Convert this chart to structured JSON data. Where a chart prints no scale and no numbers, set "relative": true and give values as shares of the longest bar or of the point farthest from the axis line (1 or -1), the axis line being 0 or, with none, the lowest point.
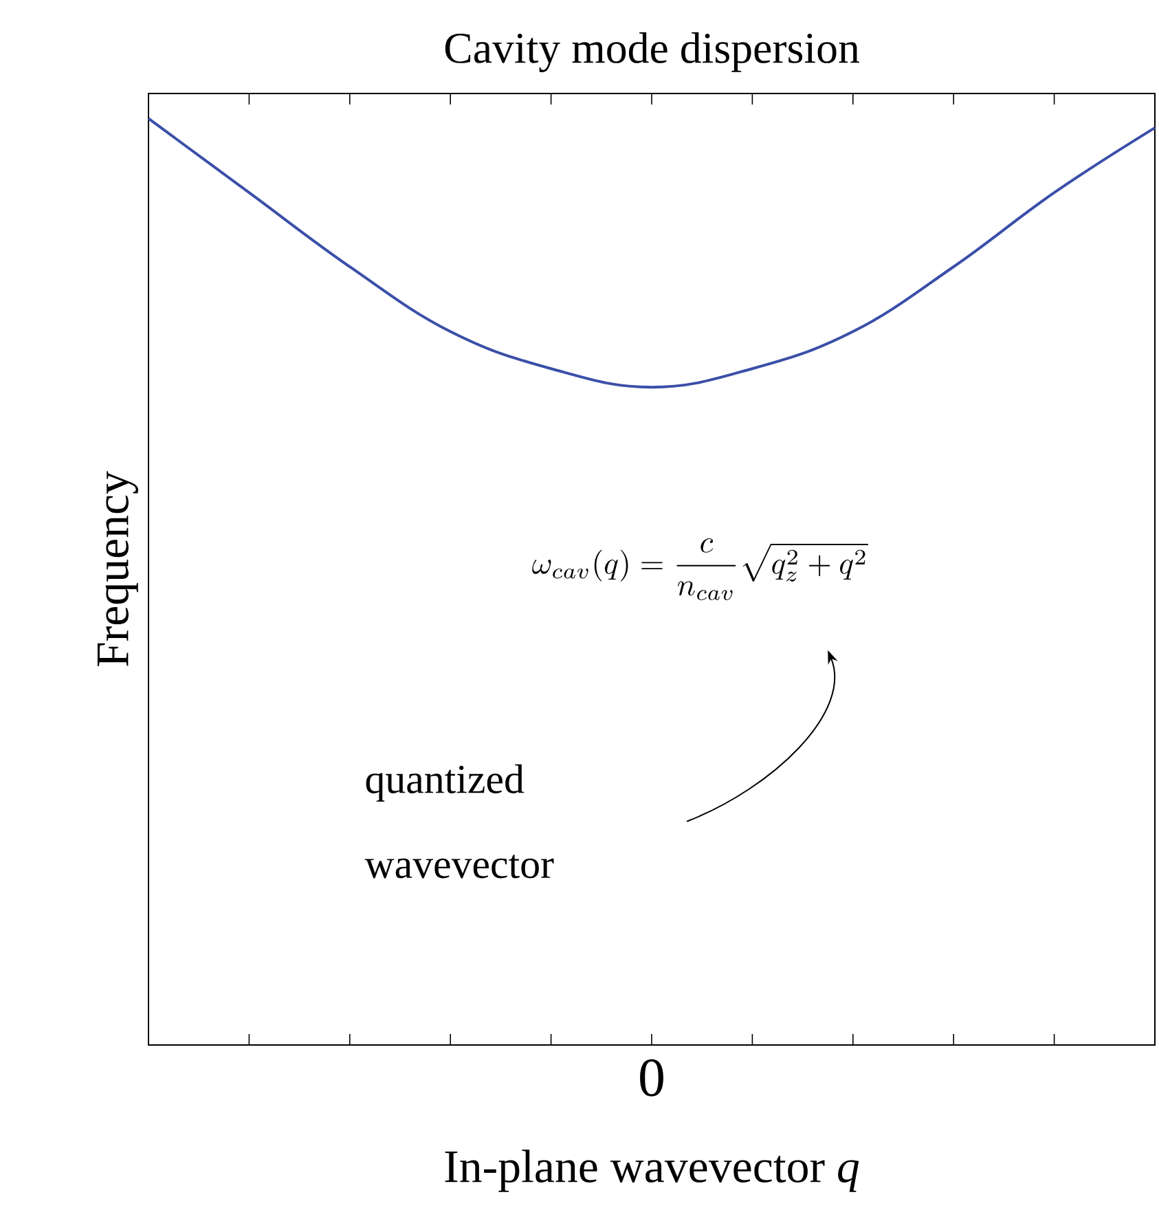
{
  "chart_data": {
    "type": "line",
    "title": "Cavity mode dispersion",
    "xlabel": "In-plane wavevector *q*",
    "ylabel": "Frequency",
    "categories": [
      null,
      null,
      null,
      null,
      null,
      null,
      null,
      null,
      null,
      null,
      null
    ],
    "relative": true,
    "series": [
      {
        "color": "#3a4fa8",
        "values": [
          1,
          0.92,
          0.84,
          0.77,
          0.73,
          0.71,
          0.73,
          0.77,
          0.84,
          0.92,
          0.99
        ]
      }
    ],
    "annotations": [
      "\\omega_{cav}(q)=\\frac{c}{n_{cav}}\\sqrt{q_z^2+q^2}",
      "quantized wavevector",
      "0"
    ],
    "line_style": "solid"
  }
}
